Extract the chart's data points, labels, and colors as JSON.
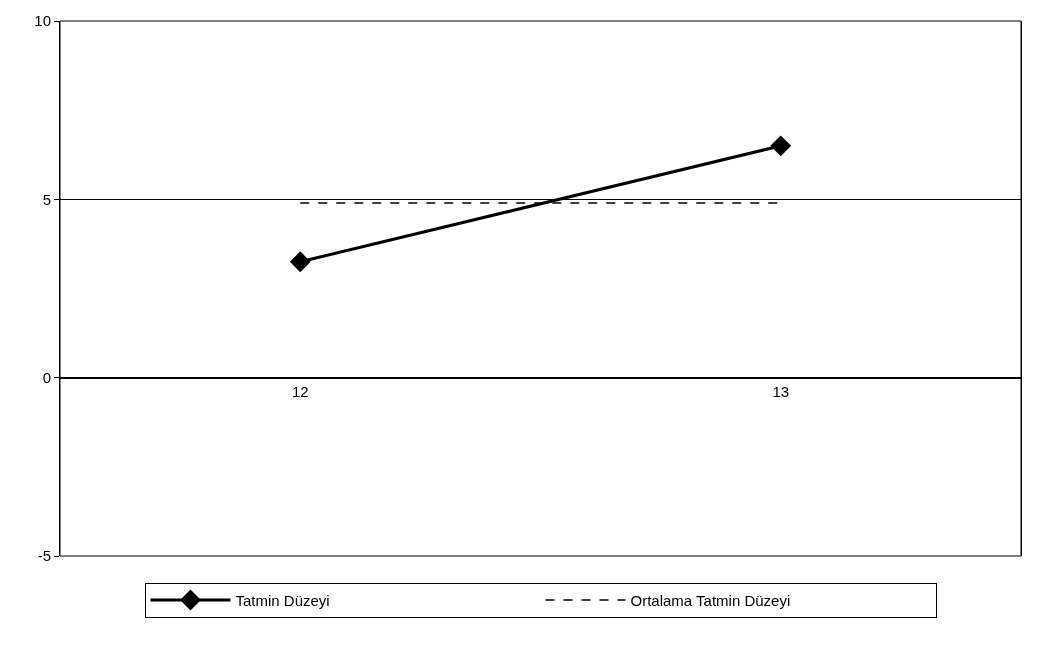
{
  "chart_data": {
    "type": "line",
    "categories": [
      "12",
      "13"
    ],
    "series": [
      {
        "name": "Tatmin Düzeyi",
        "color": "#000000",
        "values": [
          3.25,
          6.5
        ],
        "marker": "diamond",
        "line_style": "solid"
      },
      {
        "name": "Ortalama Tatmin Düzeyi",
        "color": "#000000",
        "values": [
          4.9,
          4.9
        ],
        "marker": "none",
        "line_style": "dashed"
      }
    ],
    "ylim": [
      -5,
      10
    ],
    "yticks": [
      -5,
      0,
      5,
      10
    ],
    "grid": "y",
    "legend": "bottom"
  }
}
